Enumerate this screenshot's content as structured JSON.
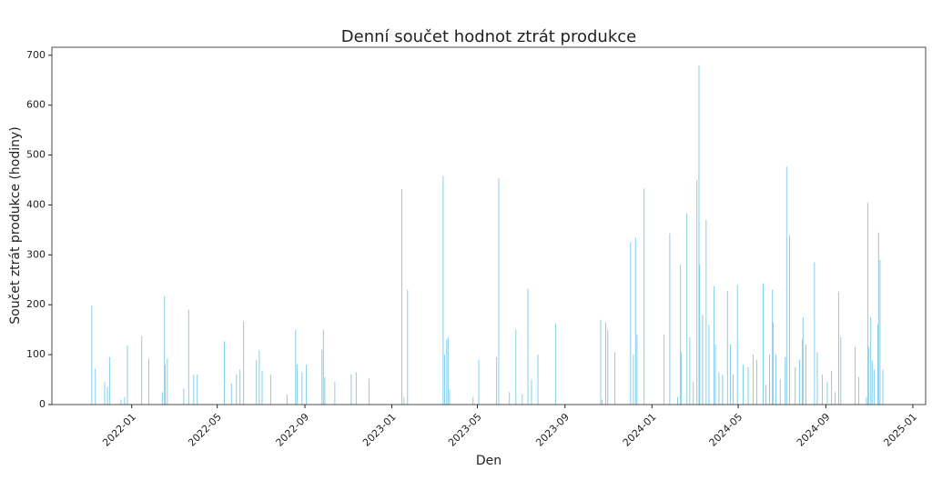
{
  "chart_data": {
    "type": "bar",
    "title": "Denní součet hodnot ztrát produkce",
    "x_label": "Den",
    "y_label": "Součet ztrát produkce (hodiny)",
    "color": "#87ceeb",
    "x": [
      "2021-11-06",
      "2021-11-11",
      "2021-11-24",
      "2021-11-28",
      "2021-12-01",
      "2021-12-17",
      "2021-12-22",
      "2021-12-26",
      "2022-01-15",
      "2022-01-25",
      "2022-02-13",
      "2022-02-16",
      "2022-02-17",
      "2022-02-20",
      "2022-03-15",
      "2022-03-22",
      "2022-03-29",
      "2022-04-03",
      "2022-05-11",
      "2022-05-21",
      "2022-05-28",
      "2022-06-02",
      "2022-06-07",
      "2022-06-25",
      "2022-06-29",
      "2022-07-03",
      "2022-07-15",
      "2022-08-07",
      "2022-08-19",
      "2022-08-21",
      "2022-08-28",
      "2022-09-03",
      "2022-09-25",
      "2022-09-27",
      "2022-09-29",
      "2022-10-13",
      "2022-11-05",
      "2022-11-12",
      "2022-11-30",
      "2023-01-15",
      "2023-01-18",
      "2023-01-23",
      "2023-03-14",
      "2023-03-16",
      "2023-03-19",
      "2023-03-21",
      "2023-03-23",
      "2023-04-25",
      "2023-05-03",
      "2023-05-28",
      "2023-05-31",
      "2023-06-15",
      "2023-06-24",
      "2023-07-03",
      "2023-07-11",
      "2023-07-16",
      "2023-07-25",
      "2023-08-19",
      "2023-10-21",
      "2023-10-23",
      "2023-10-28",
      "2023-10-31",
      "2023-11-10",
      "2023-12-02",
      "2023-12-06",
      "2023-12-09",
      "2023-12-11",
      "2023-12-21",
      "2024-01-18",
      "2024-01-26",
      "2024-02-06",
      "2024-02-10",
      "2024-02-11",
      "2024-02-19",
      "2024-02-23",
      "2024-02-28",
      "2024-03-04",
      "2024-03-07",
      "2024-03-08",
      "2024-03-12",
      "2024-03-17",
      "2024-03-21",
      "2024-03-28",
      "2024-03-30",
      "2024-04-04",
      "2024-04-09",
      "2024-04-16",
      "2024-04-20",
      "2024-04-24",
      "2024-04-30",
      "2024-05-08",
      "2024-05-15",
      "2024-05-22",
      "2024-05-27",
      "2024-06-05",
      "2024-06-09",
      "2024-06-14",
      "2024-06-18",
      "2024-06-19",
      "2024-06-23",
      "2024-06-29",
      "2024-07-06",
      "2024-07-08",
      "2024-07-12",
      "2024-07-20",
      "2024-07-26",
      "2024-07-30",
      "2024-07-31",
      "2024-08-04",
      "2024-08-16",
      "2024-08-20",
      "2024-08-27",
      "2024-09-03",
      "2024-09-09",
      "2024-09-14",
      "2024-09-19",
      "2024-09-22",
      "2024-10-12",
      "2024-10-17",
      "2024-10-28",
      "2024-10-30",
      "2024-10-31",
      "2024-11-03",
      "2024-11-05",
      "2024-11-08",
      "2024-11-13",
      "2024-11-14",
      "2024-11-16",
      "2024-11-20"
    ],
    "values": [
      198,
      72,
      45,
      35,
      95,
      10,
      15,
      118,
      137,
      92,
      25,
      217,
      80,
      92,
      32,
      190,
      60,
      60,
      127,
      42,
      60,
      70,
      167,
      90,
      108,
      68,
      60,
      20,
      150,
      80,
      65,
      80,
      110,
      150,
      55,
      45,
      60,
      65,
      52,
      432,
      15,
      230,
      458,
      100,
      130,
      135,
      30,
      15,
      90,
      95,
      453,
      25,
      150,
      20,
      232,
      50,
      100,
      163,
      170,
      10,
      165,
      150,
      105,
      325,
      100,
      335,
      140,
      433,
      140,
      343,
      15,
      280,
      105,
      383,
      135,
      45,
      450,
      680,
      280,
      180,
      370,
      160,
      237,
      120,
      65,
      60,
      228,
      120,
      60,
      240,
      80,
      75,
      100,
      90,
      243,
      40,
      100,
      230,
      165,
      100,
      50,
      95,
      477,
      340,
      75,
      90,
      130,
      175,
      120,
      285,
      105,
      60,
      45,
      68,
      25,
      225,
      135,
      115,
      55,
      15,
      405,
      115,
      175,
      88,
      70,
      160,
      345,
      290,
      70
    ],
    "xlim": [
      "2021-09-11",
      "2025-01-19"
    ],
    "xticks": [
      {
        "value": "2022-01-01",
        "label": "2022-01"
      },
      {
        "value": "2022-05-01",
        "label": "2022-05"
      },
      {
        "value": "2022-09-01",
        "label": "2022-09"
      },
      {
        "value": "2023-01-01",
        "label": "2023-01"
      },
      {
        "value": "2023-05-01",
        "label": "2023-05"
      },
      {
        "value": "2023-09-01",
        "label": "2023-09"
      },
      {
        "value": "2024-01-01",
        "label": "2024-01"
      },
      {
        "value": "2024-05-01",
        "label": "2024-05"
      },
      {
        "value": "2024-09-01",
        "label": "2024-09"
      },
      {
        "value": "2025-01-01",
        "label": "2025-01"
      }
    ],
    "ylim": [
      0,
      716
    ],
    "yticks": [
      0,
      100,
      200,
      300,
      400,
      500,
      600,
      700
    ],
    "grid": false
  }
}
